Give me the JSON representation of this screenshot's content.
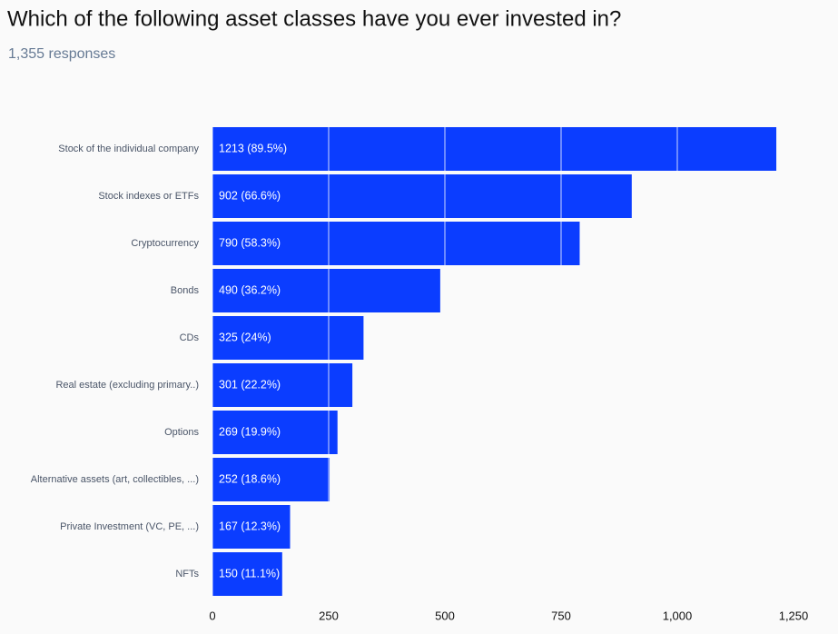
{
  "chart_data": {
    "type": "bar",
    "orientation": "horizontal",
    "title": "Which of the following asset classes have you ever invested in?",
    "subtitle": "1,355 responses",
    "categories": [
      "Stock of the individual company",
      "Stock indexes or ETFs",
      "Cryptocurrency",
      "Bonds",
      "CDs",
      "Real estate (excluding primary..)",
      "Options",
      "Alternative assets (art, collectibles, ...)",
      "Private Investment (VC, PE, ...)",
      "NFTs"
    ],
    "values": [
      1213,
      902,
      790,
      490,
      325,
      301,
      269,
      252,
      167,
      150
    ],
    "value_labels": [
      "1213 (89.5%)",
      "902 (66.6%)",
      "790 (58.3%)",
      "490 (36.2%)",
      "325 (24%)",
      "301 (22.2%)",
      "269 (19.9%)",
      "252 (18.6%)",
      "167 (12.3%)",
      "150 (11.1%)"
    ],
    "color": "#0b3dff",
    "xlim": [
      0,
      1250
    ],
    "xticks": [
      0,
      250,
      500,
      750,
      {
        "value": 1000,
        "label": "1,000"
      },
      {
        "value": 1250,
        "label": "1,250"
      }
    ],
    "grid": true
  }
}
